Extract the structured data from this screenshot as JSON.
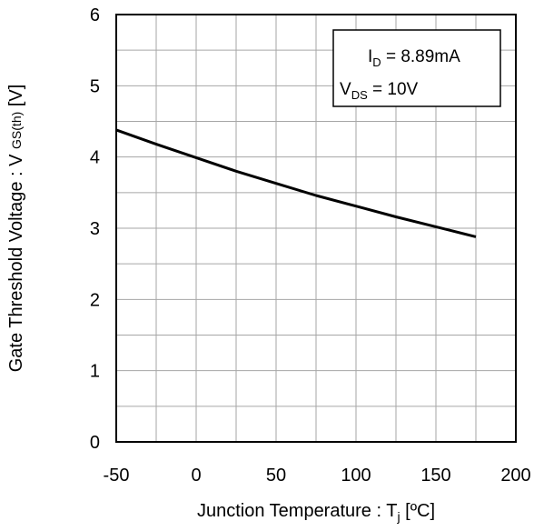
{
  "chart_data": {
    "type": "line",
    "xlabel": {
      "main": "Junction Temperature : T",
      "sub": "j",
      "unit": " [ºC]"
    },
    "ylabel": {
      "main": "Gate Threshold Voltage : V ",
      "sub": "GS(th)",
      "unit": " [V]"
    },
    "xlim": [
      -50,
      200
    ],
    "ylim": [
      0,
      6
    ],
    "xticks": [
      "-50",
      "0",
      "50",
      "100",
      "150",
      "200"
    ],
    "yticks": [
      "0",
      "1",
      "2",
      "3",
      "4",
      "5",
      "6"
    ],
    "grid": true,
    "legend_position": "top-right",
    "conditions": [
      {
        "main": "I",
        "sub": "D",
        "text": " = 8.89mA"
      },
      {
        "main": "V",
        "sub": "DS",
        "text": " = 10V"
      }
    ],
    "series": [
      {
        "x": [
          -50,
          -25,
          0,
          25,
          50,
          75,
          100,
          125,
          150,
          175
        ],
        "y": [
          4.38,
          4.18,
          3.99,
          3.8,
          3.63,
          3.46,
          3.31,
          3.16,
          3.02,
          2.88
        ]
      }
    ],
    "colors": {
      "line": "#000000",
      "grid": "#a6a6a6",
      "frame": "#000000"
    }
  }
}
